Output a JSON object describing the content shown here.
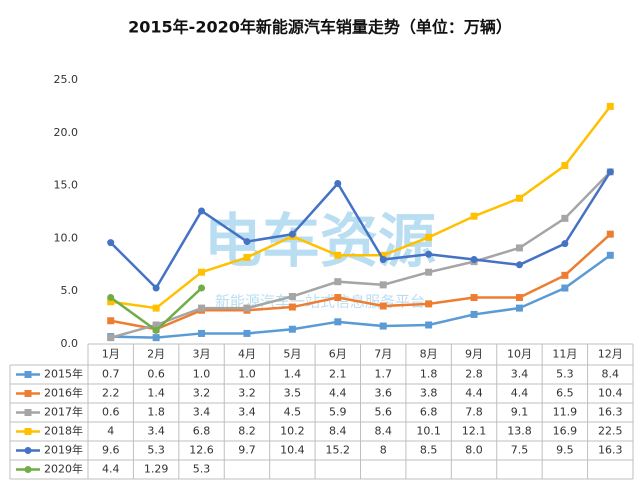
{
  "chart_data": {
    "type": "line",
    "title": "2015年-2020年新能源汽车销量走势（单位：万辆）",
    "watermark": "电车资源",
    "watermark_subtitle": "新能源汽车一站式信息服务平台",
    "categories": [
      "1月",
      "2月",
      "3月",
      "4月",
      "5月",
      "6月",
      "7月",
      "8月",
      "9月",
      "10月",
      "11月",
      "12月"
    ],
    "ylim": [
      0,
      25
    ],
    "yticks": [
      {
        "value": 0,
        "label": "0.0"
      },
      {
        "value": 5,
        "label": "5.0"
      },
      {
        "value": 10,
        "label": "10.0"
      },
      {
        "value": 15,
        "label": "15.0"
      },
      {
        "value": 20,
        "label": "20.0"
      },
      {
        "value": 25,
        "label": "25.0"
      }
    ],
    "grid": false,
    "series": [
      {
        "name": "2015年",
        "color": "#5b9bd5",
        "marker": "square",
        "values": [
          0.7,
          0.6,
          1.0,
          1.0,
          1.4,
          2.1,
          1.7,
          1.8,
          2.8,
          3.4,
          5.3,
          8.4
        ],
        "value_labels": [
          "0.7",
          "0.6",
          "1.0",
          "1.0",
          "1.4",
          "2.1",
          "1.7",
          "1.8",
          "2.8",
          "3.4",
          "5.3",
          "8.4"
        ]
      },
      {
        "name": "2016年",
        "color": "#ed7d31",
        "marker": "square",
        "values": [
          2.2,
          1.4,
          3.2,
          3.2,
          3.5,
          4.4,
          3.6,
          3.8,
          4.4,
          4.4,
          6.5,
          10.4
        ]
      },
      {
        "name": "2017年",
        "color": "#a5a5a5",
        "marker": "square",
        "values": [
          0.6,
          1.8,
          3.4,
          3.4,
          4.5,
          5.9,
          5.6,
          6.8,
          7.8,
          9.1,
          11.9,
          16.3
        ]
      },
      {
        "name": "2018年",
        "color": "#ffc000",
        "marker": "square",
        "values": [
          4,
          3.4,
          6.8,
          8.2,
          10.2,
          8.4,
          8.4,
          10.1,
          12.1,
          13.8,
          16.9,
          22.5
        ]
      },
      {
        "name": "2019年",
        "color": "#4472c4",
        "marker": "circle",
        "values": [
          9.6,
          5.3,
          12.6,
          9.7,
          10.4,
          15.2,
          8,
          8.5,
          8.0,
          7.5,
          9.5,
          16.3
        ],
        "value_labels": [
          "9.6",
          "5.3",
          "12.6",
          "9.7",
          "10.4",
          "15.2",
          "8",
          "8.5",
          "8.0",
          "7.5",
          "9.5",
          "16.3"
        ]
      },
      {
        "name": "2020年",
        "color": "#70ad47",
        "marker": "circle",
        "values": [
          4.4,
          1.29,
          5.3,
          null,
          null,
          null,
          null,
          null,
          null,
          null,
          null,
          null
        ]
      }
    ]
  }
}
